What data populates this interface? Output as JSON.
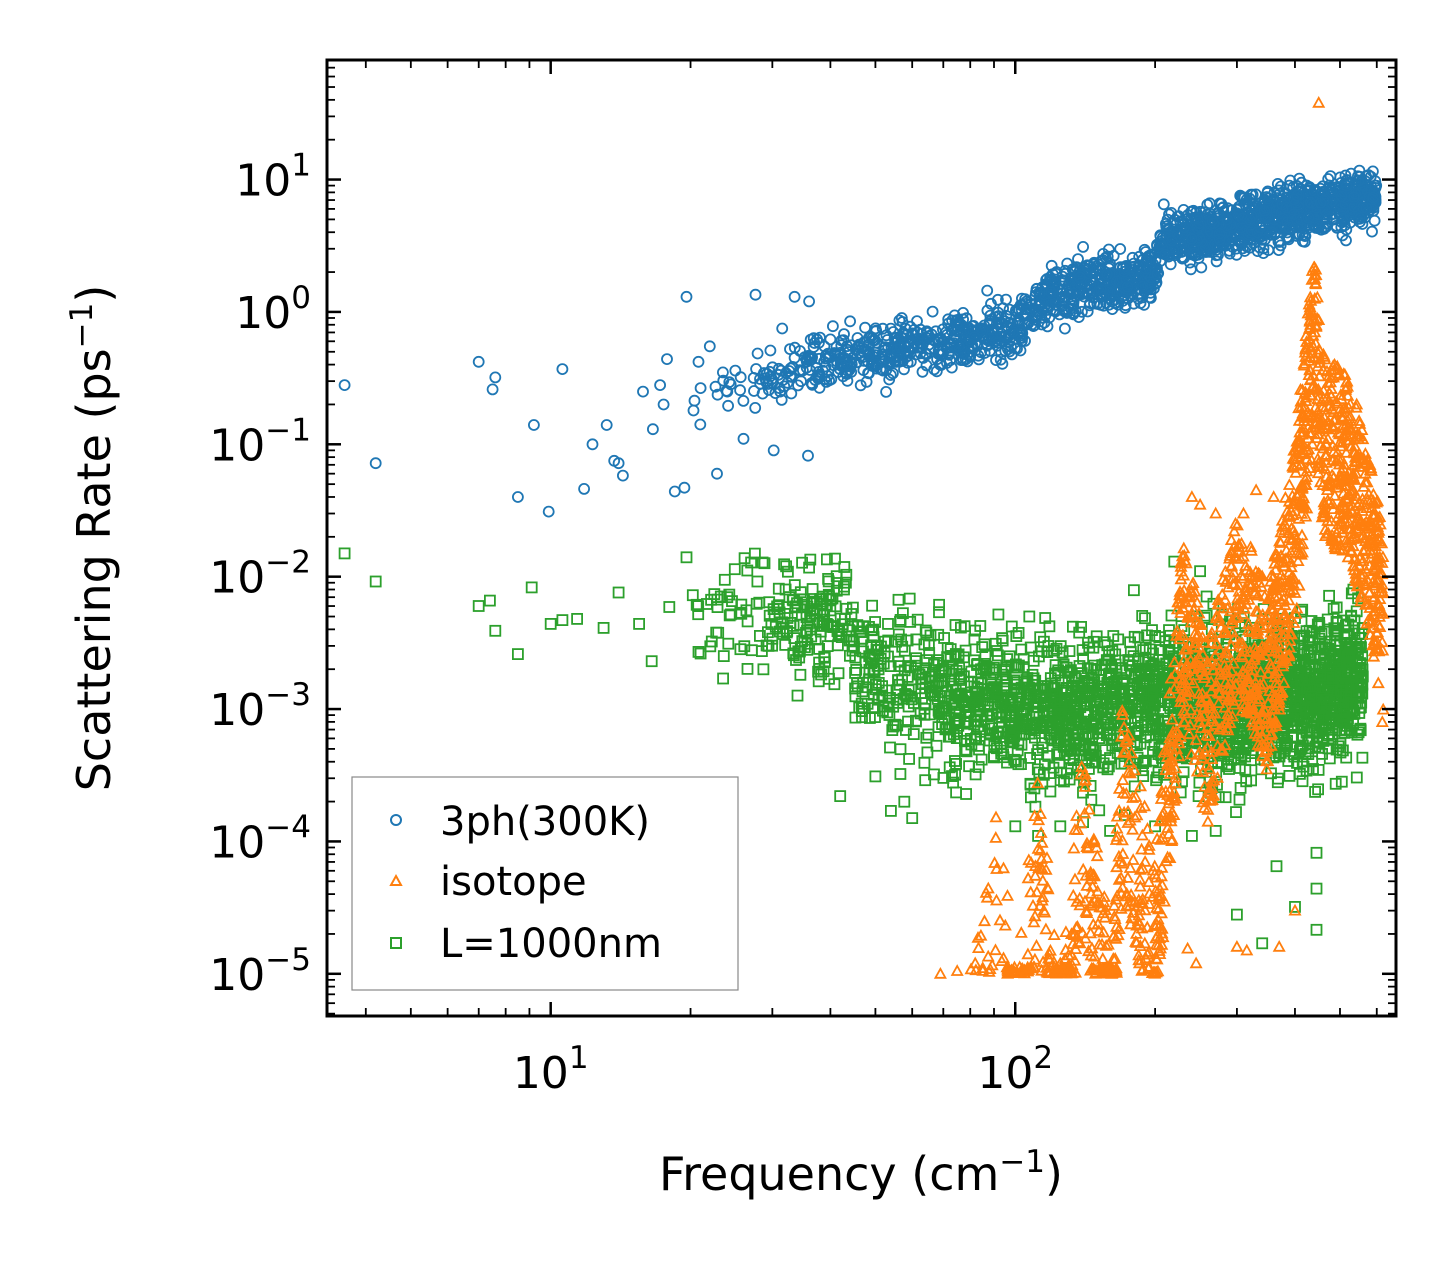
{
  "chart_data": {
    "type": "scatter",
    "xscale": "log",
    "yscale": "log",
    "xlabel": "Frequency (cm",
    "xlabel_sup": "−1",
    "xlabel_close": ")",
    "ylabel": "Scattering Rate (ps",
    "ylabel_sup": "−1",
    "ylabel_close": ")",
    "xlim": [
      3.3,
      660
    ],
    "ylim": [
      4.8e-06,
      80
    ],
    "xticks": [
      {
        "value": 10,
        "base": "10",
        "exp": "1"
      },
      {
        "value": 100,
        "base": "10",
        "exp": "2"
      }
    ],
    "yticks": [
      {
        "value": 1e-05,
        "base": "10",
        "exp": "−5"
      },
      {
        "value": 0.0001,
        "base": "10",
        "exp": "−4"
      },
      {
        "value": 0.001,
        "base": "10",
        "exp": "−3"
      },
      {
        "value": 0.01,
        "base": "10",
        "exp": "−2"
      },
      {
        "value": 0.1,
        "base": "10",
        "exp": "−1"
      },
      {
        "value": 1,
        "base": "10",
        "exp": "0"
      },
      {
        "value": 10,
        "base": "10",
        "exp": "1"
      }
    ],
    "legend_position": "lower-left",
    "series": [
      {
        "name": "3ph(300K)",
        "marker": "circle",
        "color": "#1f77b4",
        "points": [
          [
            3.6,
            0.28
          ],
          [
            4.2,
            0.072
          ],
          [
            7,
            0.42
          ],
          [
            7.5,
            0.26
          ],
          [
            7.6,
            0.32
          ],
          [
            8.5,
            0.04
          ],
          [
            9.2,
            0.14
          ],
          [
            9.9,
            0.031
          ],
          [
            10.6,
            0.37
          ],
          [
            11.8,
            0.046
          ],
          [
            12.3,
            0.1
          ],
          [
            13.2,
            0.14
          ],
          [
            13.7,
            0.075
          ],
          [
            14,
            0.072
          ],
          [
            14.3,
            0.058
          ],
          [
            15.8,
            0.25
          ],
          [
            16.6,
            0.13
          ],
          [
            17.2,
            0.28
          ],
          [
            17.5,
            0.2
          ],
          [
            17.8,
            0.44
          ],
          [
            18.5,
            0.044
          ],
          [
            19.4,
            0.047
          ],
          [
            19.6,
            1.3
          ],
          [
            20.3,
            0.18
          ],
          [
            20.8,
            0.42
          ],
          [
            22,
            0.55
          ],
          [
            22.8,
            0.06
          ],
          [
            24,
            0.25
          ],
          [
            26,
            0.11
          ],
          [
            27.6,
            1.35
          ],
          [
            30,
            0.29
          ],
          [
            30.2,
            0.09
          ],
          [
            31.5,
            0.75
          ],
          [
            33.5,
            1.3
          ],
          [
            35.8,
            0.082
          ],
          [
            36,
            1.2
          ],
          [
            38,
            0.64
          ],
          [
            40.5,
            0.78
          ],
          [
            42.8,
            0.68
          ],
          [
            44.1,
            0.85
          ],
          [
            47.5,
            0.76
          ],
          [
            57,
            0.9
          ],
          [
            73,
            0.38
          ],
          [
            87,
            1.45
          ],
          [
            140,
            3.1
          ]
        ],
        "trend": [
          [
            20,
            0.2
          ],
          [
            30,
            0.32
          ],
          [
            40,
            0.42
          ],
          [
            50,
            0.48
          ],
          [
            60,
            0.55
          ],
          [
            80,
            0.62
          ],
          [
            100,
            0.78
          ],
          [
            110,
            1.0
          ],
          [
            120,
            1.4
          ],
          [
            160,
            1.65
          ],
          [
            200,
            2.0
          ],
          [
            210,
            3.8
          ],
          [
            280,
            4.0
          ],
          [
            350,
            5.2
          ],
          [
            450,
            6.3
          ],
          [
            600,
            7.5
          ]
        ]
      },
      {
        "name": "isotope",
        "marker": "triangle",
        "color": "#ff7f0e",
        "points": [
          [
            69,
            1e-05
          ],
          [
            75,
            1.05e-05
          ],
          [
            82,
            1.2e-05
          ],
          [
            125,
            1.2e-05
          ],
          [
            165,
            1.1e-05
          ],
          [
            185,
            1.2e-05
          ],
          [
            235,
            1.55e-05
          ],
          [
            245,
            1.2e-05
          ],
          [
            300,
            1.6e-05
          ],
          [
            315,
            1.5e-05
          ],
          [
            370,
            1.6e-05
          ],
          [
            400,
            3e-05
          ],
          [
            450,
            38
          ],
          [
            240,
            0.04
          ],
          [
            250,
            0.035
          ],
          [
            270,
            0.03
          ],
          [
            310,
            0.03
          ],
          [
            330,
            0.045
          ],
          [
            360,
            0.04
          ],
          [
            460,
            0.03
          ],
          [
            500,
            0.03
          ],
          [
            550,
            0.012
          ],
          [
            600,
            0.014
          ],
          [
            620,
            0.0075
          ]
        ],
        "trend": [
          [
            80,
            1e-05
          ],
          [
            92,
            0.0002
          ],
          [
            100,
            1e-05
          ],
          [
            112,
            0.0003
          ],
          [
            125,
            1e-05
          ],
          [
            140,
            0.0005
          ],
          [
            160,
            2e-05
          ],
          [
            170,
            0.001
          ],
          [
            200,
            0.0001
          ],
          [
            230,
            0.02
          ],
          [
            260,
            0.003
          ],
          [
            300,
            0.03
          ],
          [
            350,
            0.008
          ],
          [
            400,
            0.1
          ],
          [
            440,
            3.0
          ],
          [
            460,
            0.5
          ],
          [
            530,
            0.3
          ],
          [
            600,
            0.05
          ],
          [
            620,
            0.015
          ]
        ]
      },
      {
        "name": "L=1000nm",
        "marker": "square",
        "color": "#2ca02c",
        "points": [
          [
            3.6,
            0.015
          ],
          [
            4.2,
            0.0092
          ],
          [
            7,
            0.006
          ],
          [
            7.4,
            0.0066
          ],
          [
            7.6,
            0.0039
          ],
          [
            8.5,
            0.0026
          ],
          [
            9.1,
            0.0083
          ],
          [
            10,
            0.0044
          ],
          [
            10.6,
            0.0047
          ],
          [
            11.4,
            0.0048
          ],
          [
            13,
            0.0041
          ],
          [
            14,
            0.0076
          ],
          [
            15.5,
            0.0044
          ],
          [
            16.5,
            0.0023
          ],
          [
            18,
            0.0059
          ],
          [
            19.6,
            0.014
          ],
          [
            20.8,
            0.0027
          ],
          [
            23.5,
            0.0017
          ],
          [
            27,
            0.0128
          ],
          [
            30,
            0.0034
          ],
          [
            31.8,
            0.0124
          ],
          [
            36,
            0.0117
          ],
          [
            42,
            0.00022
          ],
          [
            50,
            0.00031
          ],
          [
            54,
            0.00017
          ],
          [
            60,
            0.00015
          ],
          [
            64,
            0.00029
          ],
          [
            100,
            0.00013
          ],
          [
            112,
            0.00011
          ],
          [
            125,
            0.00013
          ],
          [
            140,
            0.00014
          ],
          [
            160,
            0.00012
          ],
          [
            180,
            0.0079
          ],
          [
            200,
            0.00013
          ],
          [
            220,
            0.013
          ],
          [
            240,
            0.00011
          ],
          [
            250,
            0.011
          ],
          [
            270,
            0.00012
          ],
          [
            300,
            2.8e-05
          ],
          [
            340,
            1.7e-05
          ],
          [
            365,
            6.5e-05
          ],
          [
            400,
            3.2e-05
          ],
          [
            445,
            2.15e-05
          ],
          [
            445,
            4.4e-05
          ],
          [
            445,
            8.2e-05
          ],
          [
            545,
            0.00064
          ],
          [
            545,
            0.0011
          ]
        ],
        "trend": [
          [
            20,
            0.0055
          ],
          [
            30,
            0.0052
          ],
          [
            40,
            0.0045
          ],
          [
            50,
            0.0035
          ],
          [
            60,
            0.0028
          ],
          [
            80,
            0.0022
          ],
          [
            100,
            0.0018
          ],
          [
            130,
            0.0018
          ],
          [
            160,
            0.002
          ],
          [
            200,
            0.0021
          ],
          [
            260,
            0.0022
          ],
          [
            320,
            0.0022
          ],
          [
            400,
            0.0024
          ],
          [
            480,
            0.0027
          ],
          [
            560,
            0.0032
          ]
        ]
      }
    ]
  }
}
